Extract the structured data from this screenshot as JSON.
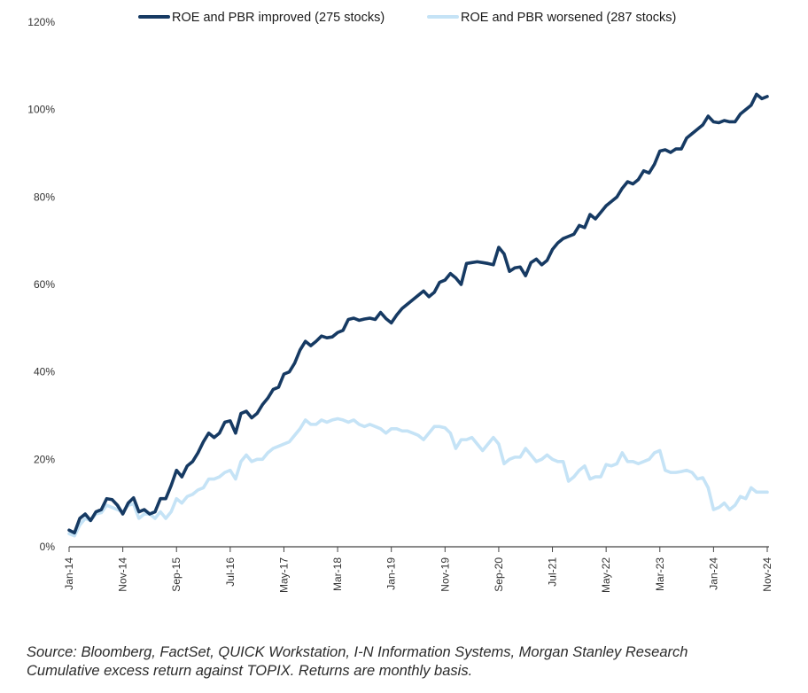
{
  "chart_data": {
    "type": "line",
    "title": "",
    "xlabel": "",
    "ylabel": "",
    "ylim": [
      0,
      120
    ],
    "yticks": [
      0,
      20,
      40,
      60,
      80,
      100,
      120
    ],
    "ytick_labels": [
      "0%",
      "20%",
      "40%",
      "60%",
      "80%",
      "100%",
      "120%"
    ],
    "xtick_labels": [
      "Jan-14",
      "Nov-14",
      "Sep-15",
      "Jul-16",
      "May-17",
      "Mar-18",
      "Jan-19",
      "Nov-19",
      "Sep-20",
      "Jul-21",
      "May-22",
      "Mar-23",
      "Jan-24",
      "Nov-24"
    ],
    "x_start": "Jan-14",
    "frequency": "monthly",
    "n_points": 131,
    "series": [
      {
        "name": "ROE and PBR improved (275 stocks)",
        "color": "#163a63",
        "values": [
          3.8,
          3.2,
          6.5,
          7.5,
          6.0,
          8.0,
          8.5,
          11.0,
          10.8,
          9.5,
          7.5,
          10.0,
          11.2,
          8.0,
          8.5,
          7.5,
          8.0,
          11.0,
          11.0,
          14.0,
          17.5,
          16.0,
          18.5,
          19.5,
          21.5,
          24.0,
          26.0,
          25.0,
          26.0,
          28.5,
          28.8,
          26.0,
          30.5,
          31.0,
          29.5,
          30.5,
          32.5,
          34.0,
          36.0,
          36.5,
          39.5,
          40.0,
          42.0,
          45.0,
          47.0,
          46.0,
          47.0,
          48.2,
          47.8,
          48.0,
          49.0,
          49.5,
          52.0,
          52.3,
          51.8,
          52.1,
          52.3,
          52.0,
          53.6,
          52.2,
          51.2,
          53.0,
          54.5,
          55.5,
          56.5,
          57.5,
          58.5,
          57.2,
          58.2,
          60.5,
          61.0,
          62.5,
          61.5,
          60.0,
          64.8,
          65.0,
          65.2,
          65.0,
          64.8,
          64.5,
          68.5,
          67.0,
          63.0,
          63.8,
          64.0,
          62.0,
          65.0,
          65.8,
          64.5,
          65.5,
          68.0,
          69.5,
          70.5,
          71.0,
          71.5,
          73.5,
          73.0,
          76.0,
          75.0,
          76.5,
          78.0,
          79.0,
          80.0,
          82.0,
          83.5,
          83.0,
          84.0,
          86.0,
          85.5,
          87.5,
          90.5,
          90.8,
          90.2,
          91.0,
          91.0,
          93.5,
          94.5,
          95.5,
          96.5,
          98.5,
          97.2,
          97.0,
          97.5,
          97.2,
          97.2,
          99.0,
          100.0,
          101.0,
          103.5,
          102.5,
          103.0
        ]
      },
      {
        "name": "ROE and PBR worsened (287 stocks)",
        "color": "#c5e3f6",
        "values": [
          3.0,
          2.5,
          5.0,
          6.5,
          6.0,
          7.5,
          7.8,
          9.5,
          9.0,
          8.5,
          8.0,
          9.5,
          9.8,
          6.5,
          7.5,
          7.5,
          6.5,
          8.0,
          6.5,
          8.0,
          11.0,
          10.0,
          11.5,
          12.0,
          13.0,
          13.5,
          15.5,
          15.5,
          16.0,
          17.0,
          17.5,
          15.5,
          19.5,
          21.0,
          19.5,
          20.0,
          20.0,
          21.5,
          22.5,
          23.0,
          23.5,
          24.0,
          25.5,
          27.0,
          29.0,
          28.0,
          28.0,
          29.0,
          28.5,
          29.0,
          29.3,
          29.0,
          28.5,
          29.0,
          28.0,
          27.5,
          28.0,
          27.5,
          27.0,
          26.0,
          27.0,
          27.0,
          26.5,
          26.5,
          26.0,
          25.5,
          24.5,
          26.0,
          27.5,
          27.5,
          27.2,
          26.0,
          22.5,
          24.5,
          24.5,
          25.0,
          23.5,
          22.0,
          23.5,
          25.0,
          23.5,
          19.0,
          20.0,
          20.5,
          20.5,
          22.5,
          21.0,
          19.5,
          20.0,
          21.0,
          20.0,
          19.5,
          19.5,
          15.0,
          16.0,
          17.5,
          18.5,
          15.5,
          16.0,
          16.0,
          18.8,
          18.5,
          19.0,
          21.5,
          19.5,
          19.5,
          19.0,
          19.5,
          20.0,
          21.5,
          22.0,
          17.5,
          17.0,
          17.0,
          17.2,
          17.5,
          17.0,
          15.5,
          15.8,
          13.5,
          8.5,
          9.0,
          10.0,
          8.5,
          9.5,
          11.5,
          11.0,
          13.5,
          12.5,
          12.5,
          12.5
        ]
      }
    ],
    "legend_position": "top",
    "grid": false
  },
  "footer": {
    "source_line": "Source: Bloomberg, FactSet, QUICK Workstation, I-N Information Systems, Morgan Stanley Research",
    "note_line": "Cumulative excess return against TOPIX. Returns are monthly basis."
  }
}
